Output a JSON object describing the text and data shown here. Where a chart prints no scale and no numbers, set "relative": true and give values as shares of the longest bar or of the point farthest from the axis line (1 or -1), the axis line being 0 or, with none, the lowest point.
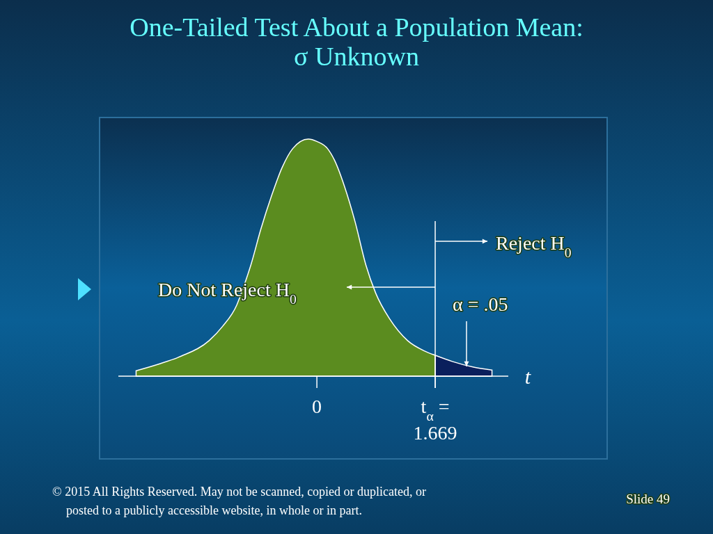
{
  "chart_data": {
    "type": "area",
    "title": "One-Tailed Test About a Population Mean: σ Unknown",
    "xlabel": "t",
    "relative": true,
    "xlim": [
      -2.8,
      2.7
    ],
    "xticks": [
      0,
      {
        "value": 1.669,
        "label": "t$_{α}$ = 1.669"
      }
    ],
    "series": [
      {
        "color": "#5b8c1f",
        "x": [
          -2.55,
          -2.21,
          -1.91,
          -1.52,
          -1.33,
          -1.13,
          -1.03,
          -0.93,
          -0.79,
          -0.64,
          -0.49,
          -0.34,
          -0.12,
          0,
          0.15,
          0.25,
          0.39,
          0.54,
          0.69,
          0.83,
          1.03,
          1.28,
          1.52,
          1.669
        ],
        "values": [
          0.023,
          0.053,
          0.085,
          0.15,
          0.21,
          0.3,
          0.38,
          0.47,
          0.62,
          0.76,
          0.88,
          0.96,
          1,
          0.99,
          0.96,
          0.91,
          0.8,
          0.65,
          0.47,
          0.35,
          0.24,
          0.15,
          0.106,
          0.088
        ]
      },
      {
        "color": "#0a1f5c",
        "x": [
          1.669,
          1.91,
          2.21,
          2.47
        ],
        "values": [
          0.088,
          0.062,
          0.038,
          0.026
        ]
      }
    ],
    "ref_lines": [
      {
        "axis": "x",
        "value": 1.669,
        "color": "#ffffff"
      }
    ],
    "annotations": [
      "Reject H$_{0}$",
      "Do Not Reject H$_{0}$",
      "α = .05",
      "© 2015 All Rights Reserved. May not be scanned, copied or duplicated, or posted to a publicly accessible website, in whole or in part.",
      "Slide 49"
    ]
  }
}
